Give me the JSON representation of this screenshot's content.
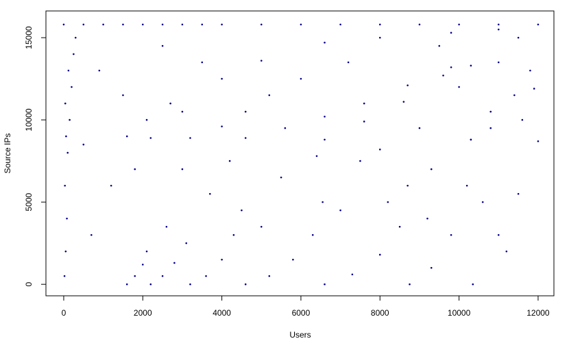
{
  "chart_data": {
    "type": "scatter",
    "x_label": "Users",
    "y_label": "Source IPs",
    "color": "#00008b",
    "xlim": [
      -450,
      12400
    ],
    "ylim": [
      -700,
      16625
    ],
    "xticks": [
      0,
      2000,
      4000,
      6000,
      8000,
      10000,
      12000
    ],
    "yticks": [
      0,
      5000,
      10000,
      15000
    ],
    "x": [
      0,
      500,
      1000,
      1500,
      2000,
      2500,
      3000,
      3500,
      4000,
      5000,
      6000,
      7000,
      8000,
      9000,
      10000,
      11000,
      12000,
      20,
      50,
      80,
      30,
      100,
      60,
      150,
      40,
      200,
      120,
      250,
      300,
      1600,
      1800,
      2000,
      2100,
      2200,
      2500,
      2800,
      3100,
      3200,
      3600,
      4000,
      4300,
      4500,
      4600,
      5200,
      5800,
      6300,
      6550,
      6600,
      7300,
      8000,
      8500,
      8700,
      8750,
      9300,
      9800,
      10200,
      10300,
      10300,
      10800,
      11400,
      11900,
      10350,
      11000,
      11500,
      12000,
      6600,
      7600,
      8600,
      9600,
      10300,
      4600,
      5600,
      6600,
      7600,
      8700,
      9800,
      11000,
      3200,
      4000,
      4600,
      2200,
      3000,
      4000,
      5000,
      6600,
      8000,
      9800,
      11000,
      1600,
      2100,
      2700,
      700,
      1200,
      1500,
      2600,
      3000,
      3700,
      4200,
      5000,
      5500,
      6000,
      7000,
      7500,
      7200,
      8200,
      8000,
      9000,
      9300,
      9500,
      10000,
      10800,
      11200,
      11600,
      11800,
      11500,
      10600,
      9200,
      6400,
      5200,
      3500,
      2500,
      900,
      1800,
      500
    ],
    "y": [
      15800,
      15800,
      15800,
      15800,
      15800,
      15800,
      15800,
      15800,
      15800,
      15800,
      15800,
      15800,
      15800,
      15800,
      15800,
      15800,
      15800,
      500,
      2000,
      4000,
      6000,
      8000,
      9000,
      10000,
      11000,
      12000,
      13000,
      14000,
      15000,
      0,
      500,
      1200,
      2000,
      0,
      500,
      1300,
      2500,
      0,
      500,
      1500,
      3000,
      4500,
      0,
      500,
      1500,
      3000,
      5000,
      0,
      600,
      1800,
      3500,
      6000,
      0,
      1000,
      3000,
      6000,
      8800,
      8800,
      10500,
      11500,
      11900,
      0,
      3000,
      5500,
      8700,
      8800,
      9900,
      11100,
      12700,
      13300,
      8900,
      9500,
      10200,
      11000,
      12100,
      13200,
      13500,
      8900,
      9600,
      10500,
      8900,
      10500,
      12500,
      13600,
      14700,
      15000,
      15300,
      15500,
      9000,
      10000,
      11000,
      3000,
      6000,
      11500,
      3500,
      7000,
      5500,
      7500,
      3500,
      6500,
      12500,
      4500,
      7500,
      13500,
      5000,
      8200,
      9500,
      7000,
      14500,
      12000,
      9500,
      2000,
      10000,
      13000,
      15000,
      5000,
      4000,
      7800,
      11500,
      13500,
      14500,
      13000,
      7000,
      8500
    ]
  }
}
